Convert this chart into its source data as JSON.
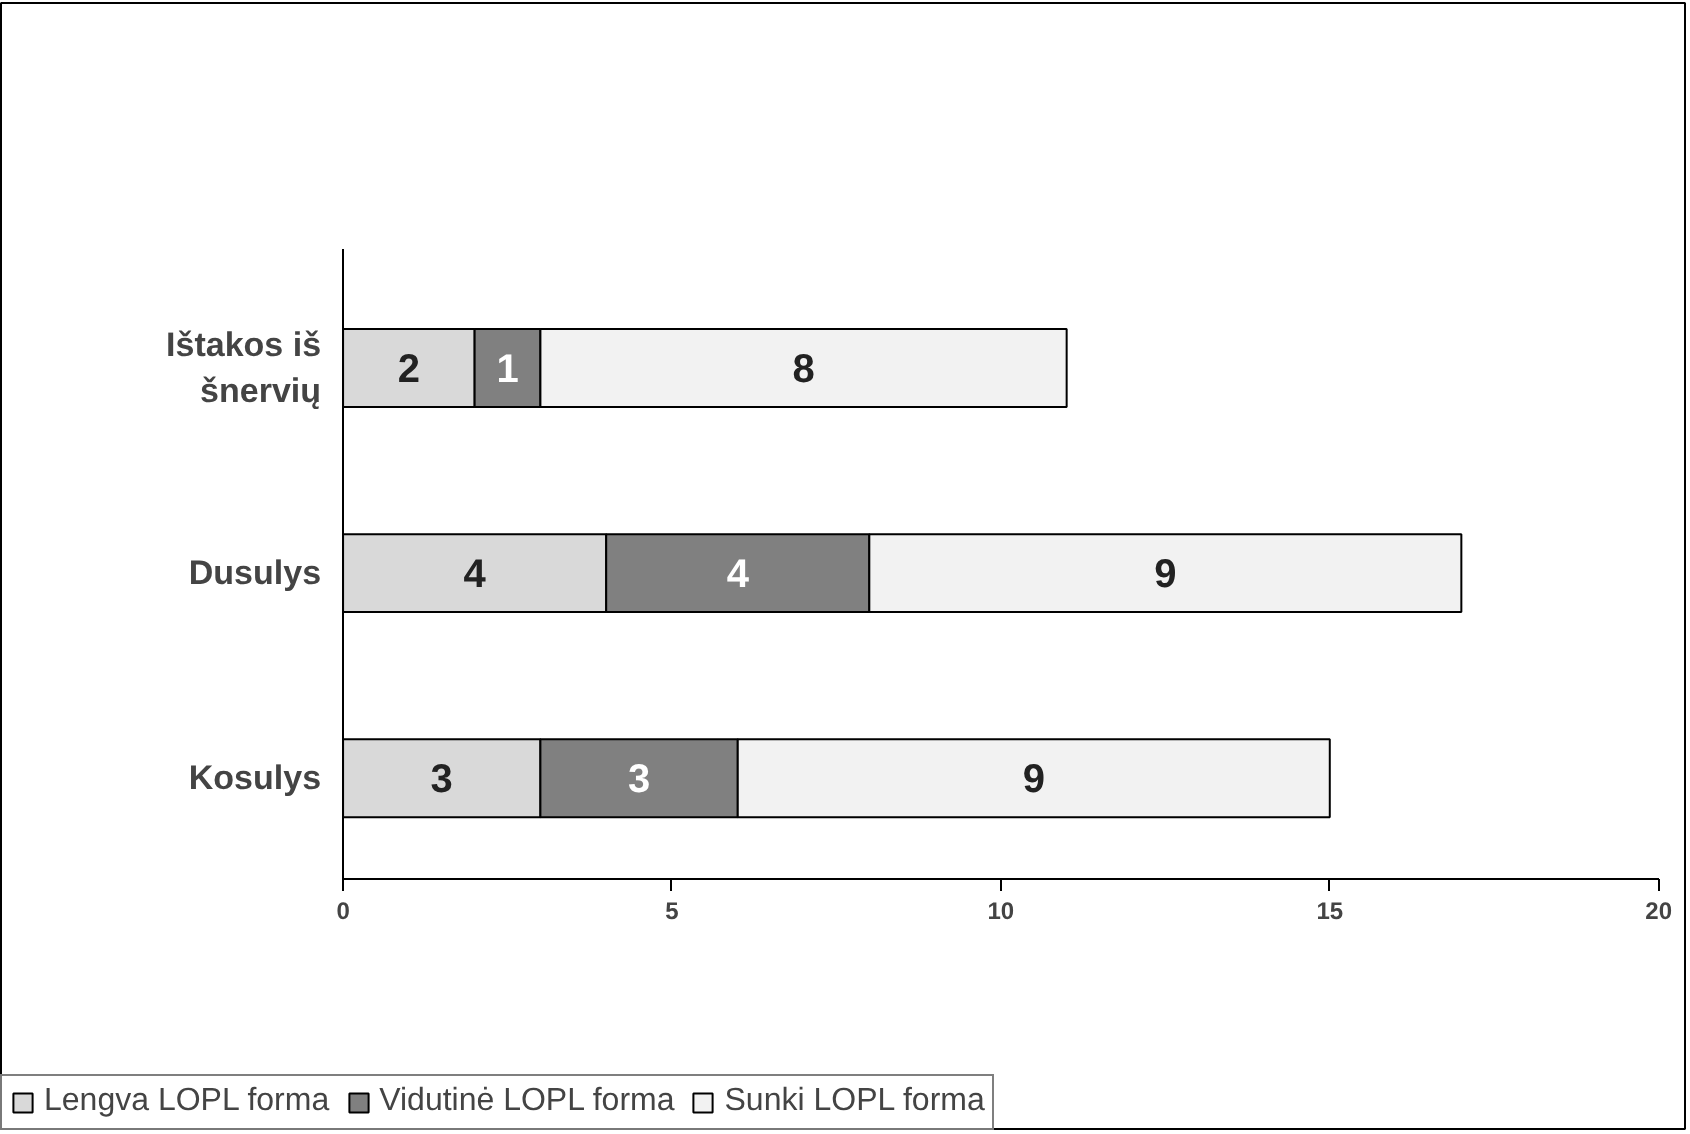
{
  "chart_data": {
    "type": "bar",
    "orientation": "horizontal",
    "stacked": true,
    "categories": [
      "Ištakos iš\nšnervių",
      "Dusulys",
      "Kosulys"
    ],
    "series": [
      {
        "name": "Lengva LOPL forma",
        "color": "#d9d9d9",
        "values": [
          2,
          4,
          3
        ]
      },
      {
        "name": "Vidutinė LOPL forma",
        "color": "#808080",
        "values": [
          1,
          4,
          3
        ]
      },
      {
        "name": "Sunki LOPL forma",
        "color": "#f2f2f2",
        "values": [
          8,
          9,
          9
        ]
      }
    ],
    "xlim": [
      0,
      20
    ],
    "xticks": [
      0,
      5,
      10,
      15,
      20
    ],
    "grid": false,
    "legend": "bottom",
    "data_labels": true
  }
}
